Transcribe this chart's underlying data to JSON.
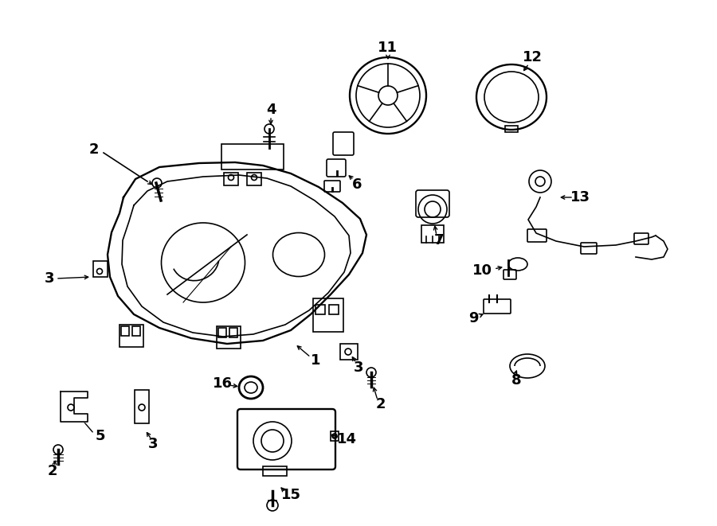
{
  "bg_color": "#ffffff",
  "line_color": "#000000",
  "fig_width": 9.0,
  "fig_height": 6.61,
  "dpi": 100,
  "font_size": 13
}
